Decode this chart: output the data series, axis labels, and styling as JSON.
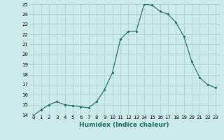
{
  "x": [
    0,
    1,
    2,
    3,
    4,
    5,
    6,
    7,
    8,
    9,
    10,
    11,
    12,
    13,
    14,
    15,
    16,
    17,
    18,
    19,
    20,
    21,
    22,
    23
  ],
  "y": [
    13.9,
    14.5,
    15.0,
    15.3,
    15.0,
    14.9,
    14.8,
    14.7,
    15.3,
    16.5,
    18.2,
    21.5,
    22.3,
    22.3,
    25.0,
    24.9,
    24.3,
    24.0,
    23.2,
    21.8,
    19.3,
    17.7,
    17.0,
    16.7
  ],
  "xlabel": "Humidex (Indice chaleur)",
  "ylim": [
    14,
    25
  ],
  "xlim": [
    -0.5,
    23.5
  ],
  "yticks": [
    14,
    15,
    16,
    17,
    18,
    19,
    20,
    21,
    22,
    23,
    24,
    25
  ],
  "xticks": [
    0,
    1,
    2,
    3,
    4,
    5,
    6,
    7,
    8,
    9,
    10,
    11,
    12,
    13,
    14,
    15,
    16,
    17,
    18,
    19,
    20,
    21,
    22,
    23
  ],
  "line_color": "#1a6b5a",
  "marker": "D",
  "marker_size": 1.5,
  "bg_color": "#cceaea",
  "grid_color": "#aacccc",
  "tick_label_fontsize": 5.0,
  "xlabel_fontsize": 6.5,
  "line_width": 0.8
}
